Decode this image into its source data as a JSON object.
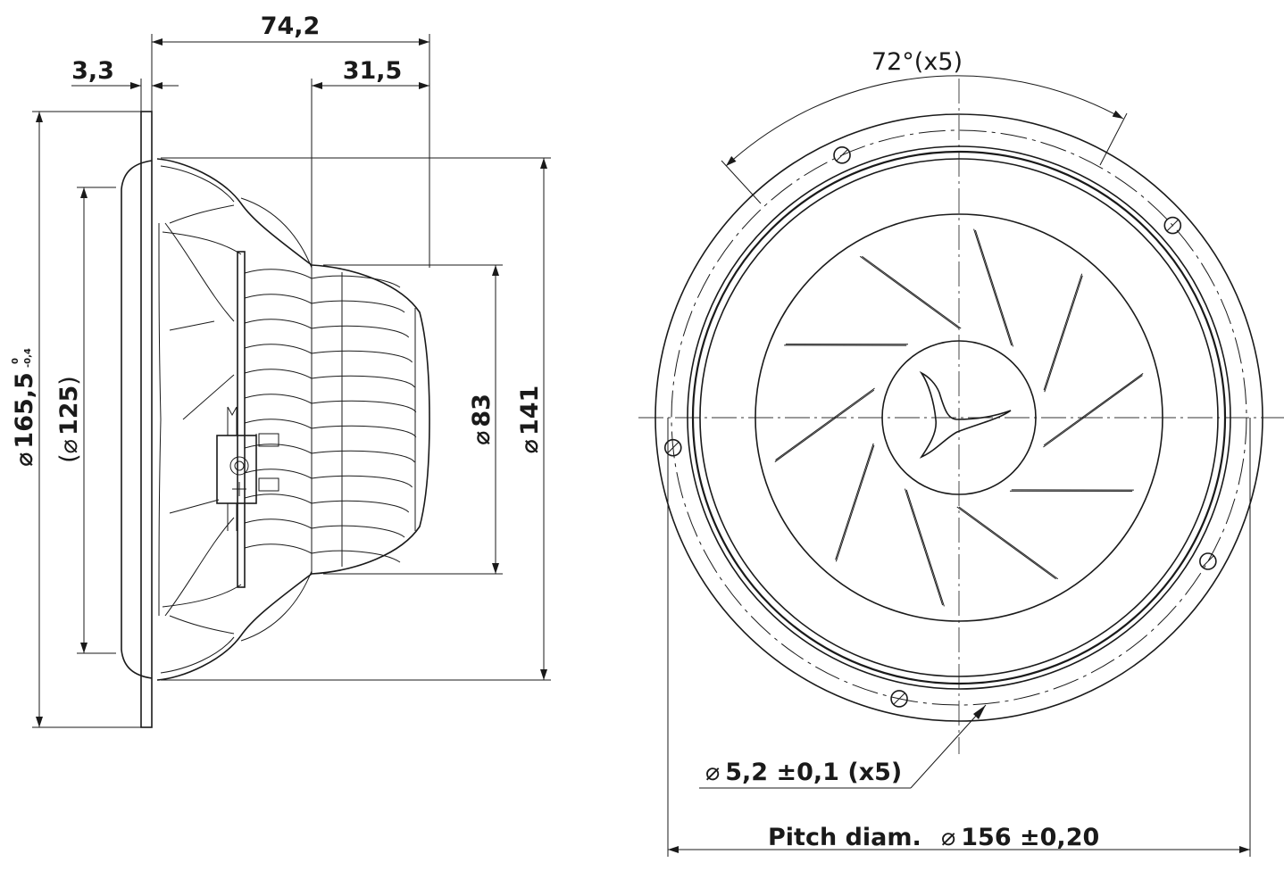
{
  "side_view": {
    "overall_depth": "74,2",
    "flange_thickness": "3,3",
    "magnet_depth": "31,5",
    "outer_diameter": "165,5",
    "outer_diameter_tol_upper": "0",
    "outer_diameter_tol_lower": "-0,4",
    "baffle_cutout": "125",
    "magnet_diameter": "83",
    "basket_diameter": "141"
  },
  "front_view": {
    "hole_angle": "72°(x5)",
    "hole_spec": "5,2 ±0,1 (x5)",
    "pitch_label": "Pitch diam.",
    "pitch_value": "156 ±0,20"
  },
  "symbols": {
    "diameter": "⌀"
  }
}
